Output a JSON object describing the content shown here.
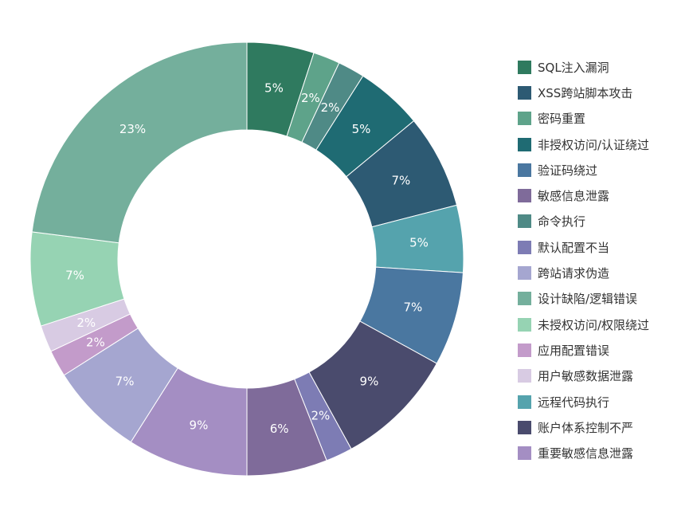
{
  "chart_data": {
    "type": "pie",
    "variant": "donut",
    "legend_position": "right",
    "series": [
      {
        "name": "SQL注入漏洞",
        "label": "5%",
        "value": 5,
        "color": "#2f7a5f"
      },
      {
        "name": "XSS跨站脚本攻击",
        "label": "7%",
        "value": 7,
        "color": "#2d5a73"
      },
      {
        "name": "密码重置",
        "label": "2%",
        "value": 2,
        "color": "#5ea38a"
      },
      {
        "name": "非授权访问/认证绕过",
        "label": "5%",
        "value": 5,
        "color": "#1f6b73"
      },
      {
        "name": "验证码绕过",
        "label": "7%",
        "value": 7,
        "color": "#4a77a0"
      },
      {
        "name": "敏感信息泄露",
        "label": "6%",
        "value": 6,
        "color": "#7f6b9a"
      },
      {
        "name": "命令执行",
        "label": "2%",
        "value": 2,
        "color": "#4f8a86"
      },
      {
        "name": "默认配置不当",
        "label": "2%",
        "value": 2,
        "color": "#7d7cb4"
      },
      {
        "name": "跨站请求伪造",
        "label": "7%",
        "value": 7,
        "color": "#a5a6d0"
      },
      {
        "name": "设计缺陷/逻辑错误",
        "label": "23%",
        "value": 23,
        "color": "#74af9c"
      },
      {
        "name": "未授权访问/权限绕过",
        "label": "7%",
        "value": 7,
        "color": "#96d3b3"
      },
      {
        "name": "应用配置错误",
        "label": "2%",
        "value": 2,
        "color": "#c39bca"
      },
      {
        "name": "用户敏感数据泄露",
        "label": "2%",
        "value": 2,
        "color": "#d8cbe3"
      },
      {
        "name": "远程代码执行",
        "label": "5%",
        "value": 5,
        "color": "#55a3ad"
      },
      {
        "name": "账户体系控制不严",
        "label": "9%",
        "value": 9,
        "color": "#4a4b6d"
      },
      {
        "name": "重要敏感信息泄露",
        "label": "9%",
        "value": 9,
        "color": "#a48ec3"
      }
    ],
    "slices_clockwise_from_top": [
      0,
      2,
      6,
      3,
      1,
      13,
      4,
      14,
      7,
      5,
      15,
      8,
      11,
      12,
      10,
      9
    ]
  }
}
